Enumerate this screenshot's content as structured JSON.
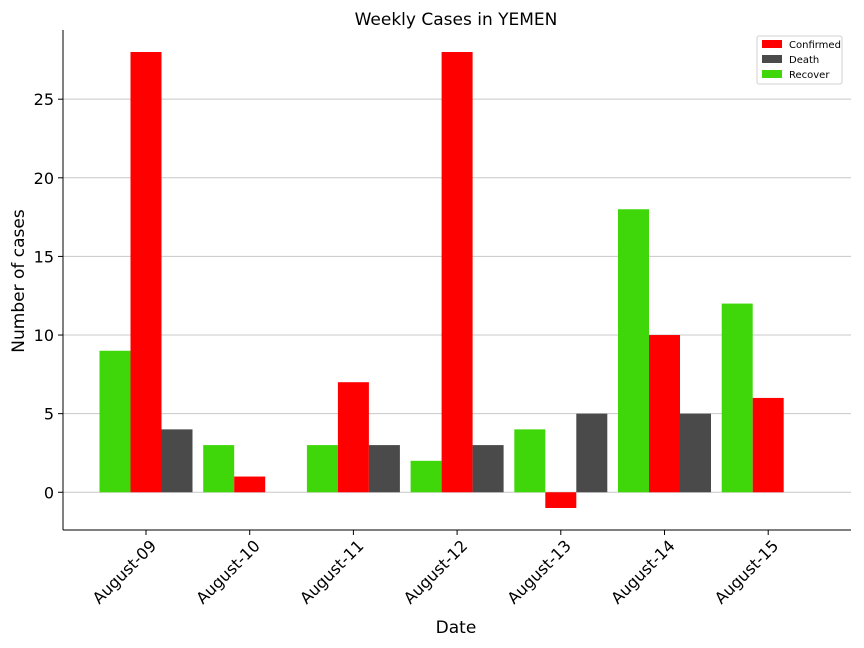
{
  "chart_data": {
    "type": "bar",
    "title": "Weekly Cases in YEMEN",
    "xlabel": "Date",
    "ylabel": "Number of cases",
    "categories": [
      "August-09",
      "August-10",
      "August-11",
      "August-12",
      "August-13",
      "August-14",
      "August-15"
    ],
    "series": [
      {
        "name": "Recover",
        "color": "#3fd70a",
        "values": [
          9,
          3,
          3,
          2,
          4,
          18,
          12
        ]
      },
      {
        "name": "Confirmed",
        "color": "#ff0000",
        "values": [
          28,
          1,
          7,
          28,
          -1,
          10,
          6
        ]
      },
      {
        "name": "Death",
        "color": "#4a4a4a",
        "values": [
          4,
          0,
          3,
          3,
          5,
          5,
          0
        ]
      }
    ],
    "legend_order": [
      "Confirmed",
      "Death",
      "Recover"
    ],
    "legend_position": "top-right",
    "ylim": [
      -2.4,
      29.4
    ],
    "yticks": [
      0,
      5,
      10,
      15,
      20,
      25
    ],
    "grid": "horizontal"
  }
}
